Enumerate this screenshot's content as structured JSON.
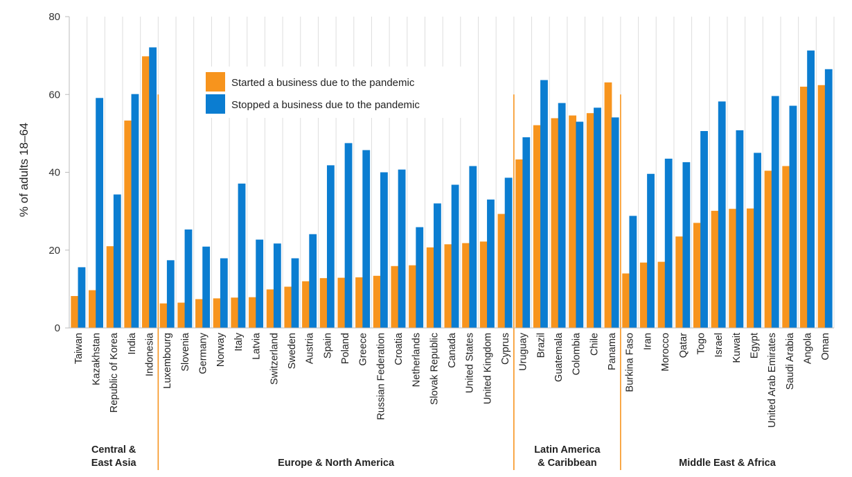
{
  "chart_data": {
    "type": "bar",
    "ylabel": "% of adults 18–64",
    "ylim": [
      0,
      80
    ],
    "yticks": [
      0,
      20,
      40,
      60,
      80
    ],
    "grid": "vertical lines between countries",
    "legend_position": "top-center",
    "categories": [
      "Taiwan",
      "Kazakhstan",
      "Republic of Korea",
      "India",
      "Indonesia",
      "Luxembourg",
      "Slovenia",
      "Germany",
      "Norway",
      "Italy",
      "Latvia",
      "Switzerland",
      "Sweden",
      "Austria",
      "Spain",
      "Poland",
      "Greece",
      "Russian Federation",
      "Croatia",
      "Netherlands",
      "Slovak Republic",
      "Canada",
      "United States",
      "United Kingdom",
      "Cyprus",
      "Uruguay",
      "Brazil",
      "Guatemala",
      "Colombia",
      "Chile",
      "Panama",
      "Burkina Faso",
      "Iran",
      "Morocco",
      "Qatar",
      "Togo",
      "Israel",
      "Kuwait",
      "Egypt",
      "United Arab Emirates",
      "Saudi Arabia",
      "Angola",
      "Oman"
    ],
    "series": [
      {
        "name": "Started a business due to the pandemic",
        "color": "#f7941d",
        "values": [
          8.2,
          9.7,
          21.0,
          53.3,
          69.8,
          6.3,
          6.5,
          7.4,
          7.6,
          7.8,
          7.9,
          9.9,
          10.6,
          12.0,
          12.8,
          12.9,
          13.0,
          13.4,
          15.9,
          16.1,
          20.7,
          21.5,
          21.8,
          22.2,
          29.3,
          43.3,
          52.1,
          53.9,
          54.6,
          55.2,
          63.1,
          14.0,
          16.8,
          17.0,
          23.5,
          27.0,
          30.1,
          30.6,
          30.7,
          40.4,
          41.6,
          62.0,
          62.4
        ]
      },
      {
        "name": "Stopped a business due to the pandemic",
        "color": "#0b7dd1",
        "values": [
          15.6,
          59.1,
          34.3,
          60.1,
          72.1,
          17.4,
          25.3,
          20.9,
          17.9,
          37.1,
          22.7,
          21.7,
          17.9,
          24.1,
          41.8,
          47.5,
          45.7,
          40.0,
          40.7,
          25.9,
          32.0,
          36.8,
          41.6,
          33.0,
          38.6,
          49.0,
          63.7,
          57.8,
          53.0,
          56.6,
          54.1,
          28.8,
          39.6,
          43.5,
          42.6,
          50.6,
          58.2,
          50.8,
          45.0,
          59.6,
          57.1,
          71.3,
          66.5
        ]
      }
    ],
    "regions": [
      {
        "name": "Central & East Asia",
        "lines": [
          "Central &",
          "East Asia"
        ],
        "start": 0,
        "end": 4
      },
      {
        "name": "Europe & North America",
        "lines": [
          "Europe & North America"
        ],
        "start": 5,
        "end": 24
      },
      {
        "name": "Latin America & Caribbean",
        "lines": [
          "Latin America",
          "& Caribbean"
        ],
        "start": 25,
        "end": 30
      },
      {
        "name": "Middle East & Africa",
        "lines": [
          "Middle East & Africa"
        ],
        "start": 31,
        "end": 42
      }
    ],
    "colors": {
      "separator": "#f7941d",
      "grid": "#dddddd",
      "axis": "#bbbbbb"
    }
  }
}
